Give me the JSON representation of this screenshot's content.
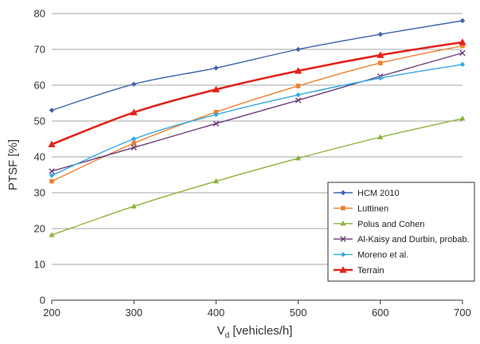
{
  "chart_data": {
    "type": "line",
    "xlabel_main": "V",
    "xlabel_sub": "d",
    "xlabel_rest": " [vehicles/h]",
    "ylabel": "PTSF [%]",
    "xlim": [
      200,
      700
    ],
    "ylim": [
      0,
      80
    ],
    "x_ticks": [
      200,
      300,
      400,
      500,
      600,
      700
    ],
    "y_ticks": [
      0,
      10,
      20,
      30,
      40,
      50,
      60,
      70,
      80
    ],
    "grid": "horizontal",
    "legend_position": "bottom-right",
    "x": [
      200,
      300,
      400,
      500,
      600,
      700
    ],
    "series": [
      {
        "name": "HCM 2010",
        "color": "#3d63ad",
        "marker": "diamond",
        "values": [
          53,
          60.3,
          64.8,
          70,
          74.2,
          78
        ]
      },
      {
        "name": "Luttinen",
        "color": "#f07f2c",
        "marker": "square",
        "values": [
          33.2,
          43.8,
          52.5,
          59.8,
          66.2,
          71
        ]
      },
      {
        "name": "Polus and Cohen",
        "color": "#8db33c",
        "marker": "triangle",
        "values": [
          18.2,
          26.2,
          33.2,
          39.6,
          45.5,
          50.7
        ]
      },
      {
        "name": "Al-Kaisy and Durbin, probab.",
        "color": "#6b3c7a",
        "marker": "x",
        "values": [
          36,
          42.6,
          49.3,
          55.8,
          62.5,
          69
        ]
      },
      {
        "name": "Moreno et al.",
        "color": "#34a9e6",
        "marker": "diamond",
        "values": [
          34.8,
          45,
          51.8,
          57.3,
          62,
          65.8
        ]
      },
      {
        "name": "Terrain",
        "color": "#e2231a",
        "marker": "triangle",
        "thick": true,
        "values": [
          43.5,
          52.4,
          58.8,
          64,
          68.4,
          72
        ]
      }
    ]
  }
}
